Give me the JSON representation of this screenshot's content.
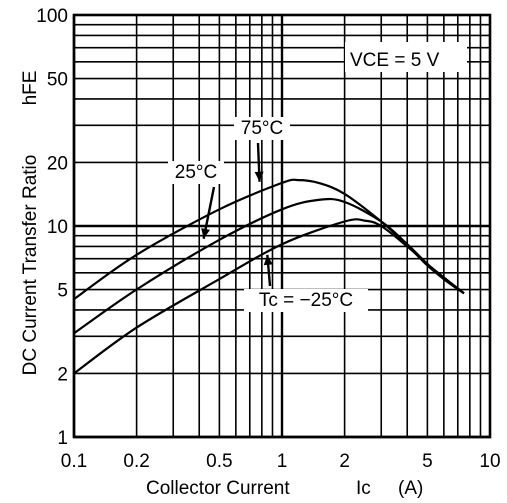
{
  "chart_data": {
    "type": "line",
    "xscale": "log",
    "yscale": "log",
    "xlim": [
      0.1,
      10
    ],
    "ylim": [
      1,
      100
    ],
    "grid": true,
    "xlabel": "Collector Current",
    "xlabel_symbol": "Ic",
    "xlabel_unit": "(A)",
    "ylabel": "DC Current Transfer Ratio",
    "ylabel_symbol": "hFE",
    "x_tick_labels": [
      {
        "value": 0.1,
        "label": "0.1"
      },
      {
        "value": 0.2,
        "label": "0.2"
      },
      {
        "value": 0.5,
        "label": "0.5"
      },
      {
        "value": 1,
        "label": "1"
      },
      {
        "value": 2,
        "label": "2"
      },
      {
        "value": 5,
        "label": "5"
      },
      {
        "value": 10,
        "label": "10"
      }
    ],
    "y_tick_labels": [
      {
        "value": 1,
        "label": "1"
      },
      {
        "value": 2,
        "label": "2"
      },
      {
        "value": 5,
        "label": "5"
      },
      {
        "value": 10,
        "label": "10"
      },
      {
        "value": 20,
        "label": "20"
      },
      {
        "value": 50,
        "label": "50"
      },
      {
        "value": 100,
        "label": "100"
      }
    ],
    "condition_label": "VCE = 5 V",
    "series": [
      {
        "name": "75°C",
        "x": [
          0.1,
          0.2,
          0.5,
          1.0,
          1.2,
          1.5,
          2.0,
          3.0,
          4.0,
          5.0,
          6.0,
          7.5
        ],
        "y": [
          4.5,
          7.3,
          12.0,
          16.0,
          16.5,
          16.0,
          14.2,
          10.5,
          8.1,
          6.5,
          5.6,
          4.8
        ]
      },
      {
        "name": "25°C",
        "x": [
          0.1,
          0.2,
          0.5,
          1.0,
          1.5,
          2.0,
          3.0,
          4.0,
          5.0,
          6.0,
          7.5
        ],
        "y": [
          3.1,
          5.0,
          8.6,
          12.0,
          13.3,
          13.0,
          10.5,
          8.2,
          6.6,
          5.6,
          4.8
        ]
      },
      {
        "name": "Tc = −25°C",
        "x": [
          0.1,
          0.2,
          0.5,
          1.0,
          2.0,
          2.5,
          3.0,
          4.0,
          5.0,
          6.0,
          7.5
        ],
        "y": [
          2.0,
          3.3,
          5.6,
          8.2,
          10.5,
          10.6,
          10.0,
          8.0,
          6.6,
          5.7,
          4.8
        ]
      }
    ],
    "annotations": [
      {
        "text": "75°C",
        "series": "75°C",
        "arrow_to": [
          0.78,
          16.2
        ]
      },
      {
        "text": "25°C",
        "series": "25°C",
        "arrow_to": [
          0.42,
          8.7
        ]
      },
      {
        "text": "Tc = −25°C",
        "series": "Tc = −25°C",
        "arrow_to": [
          0.85,
          7.3
        ]
      }
    ]
  }
}
